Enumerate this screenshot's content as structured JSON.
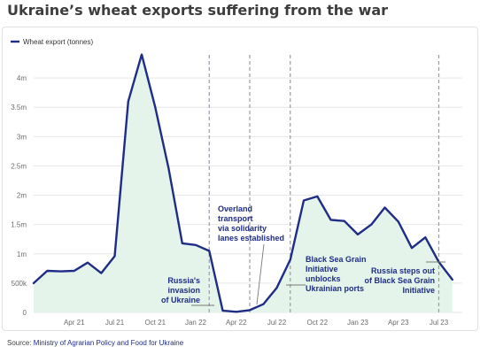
{
  "title": "Ukraine’s wheat exports suffering from the war",
  "source_label": "Source: ",
  "source_text": "Ministry of Agrarian Policy and Food for Ukraine",
  "colors": {
    "line": "#1f2d86",
    "area": "#e4f4ea",
    "grid": "#e6e6e6",
    "event_line": "#9a9aa8",
    "annotation": "#1f2d86"
  },
  "chart_data": {
    "type": "area",
    "legend": {
      "entries": [
        "Wheat export (tonnes)"
      ],
      "placement": "top-left"
    },
    "x": [
      "Jan 21",
      "Feb 21",
      "Mar 21",
      "Apr 21",
      "May 21",
      "Jun 21",
      "Jul 21",
      "Aug 21",
      "Sep 21",
      "Oct 21",
      "Nov 21",
      "Dec 21",
      "Jan 22",
      "Feb 22",
      "Mar 22",
      "Apr 22",
      "May 22",
      "Jun 22",
      "Jul 22",
      "Aug 22",
      "Sep 22",
      "Oct 22",
      "Nov 22",
      "Dec 22",
      "Jan 23",
      "Feb 23",
      "Mar 23",
      "Apr 23",
      "May 23",
      "Jun 23",
      "Jul 23",
      "Aug 23",
      "Sep 23"
    ],
    "series": [
      {
        "name": "Wheat export (tonnes)",
        "values": [
          500000,
          710000,
          700000,
          710000,
          850000,
          670000,
          960000,
          3600000,
          4400000,
          3500000,
          2450000,
          1180000,
          1150000,
          1050000,
          30000,
          10000,
          40000,
          140000,
          420000,
          900000,
          1910000,
          1980000,
          1580000,
          1560000,
          1330000,
          1500000,
          1790000,
          1550000,
          1100000,
          1280000,
          860000,
          560000,
          null
        ]
      }
    ],
    "x_ticks": [
      "Apr 21",
      "Jul 21",
      "Oct 21",
      "Jan 22",
      "Apr 22",
      "Jul 22",
      "Oct 22",
      "Jan 23",
      "Apr 23",
      "Jul 23"
    ],
    "y_ticks": [
      0,
      500000,
      1000000,
      1500000,
      2000000,
      2500000,
      3000000,
      3500000,
      4000000
    ],
    "y_tick_labels": [
      "0",
      "500k",
      "1m",
      "1.5m",
      "2m",
      "2.5m",
      "3m",
      "3.5m",
      "4m"
    ],
    "ylim": [
      0,
      4500000
    ],
    "grid": true,
    "events": [
      {
        "date": "Feb 22",
        "label": [
          "Russia's",
          "invasion",
          "of Ukraine"
        ]
      },
      {
        "date": "May 22",
        "label": [
          "Overland",
          "transport",
          "via solidarity",
          "lanes established"
        ]
      },
      {
        "date": "Aug 22",
        "label": [
          "Black Sea Grain",
          "Initiative",
          "unblocks",
          "Ukrainian ports"
        ]
      },
      {
        "date": "Jul 23",
        "label": [
          "Russia steps out",
          "of Black Sea Grain",
          "Initiative"
        ]
      }
    ]
  }
}
